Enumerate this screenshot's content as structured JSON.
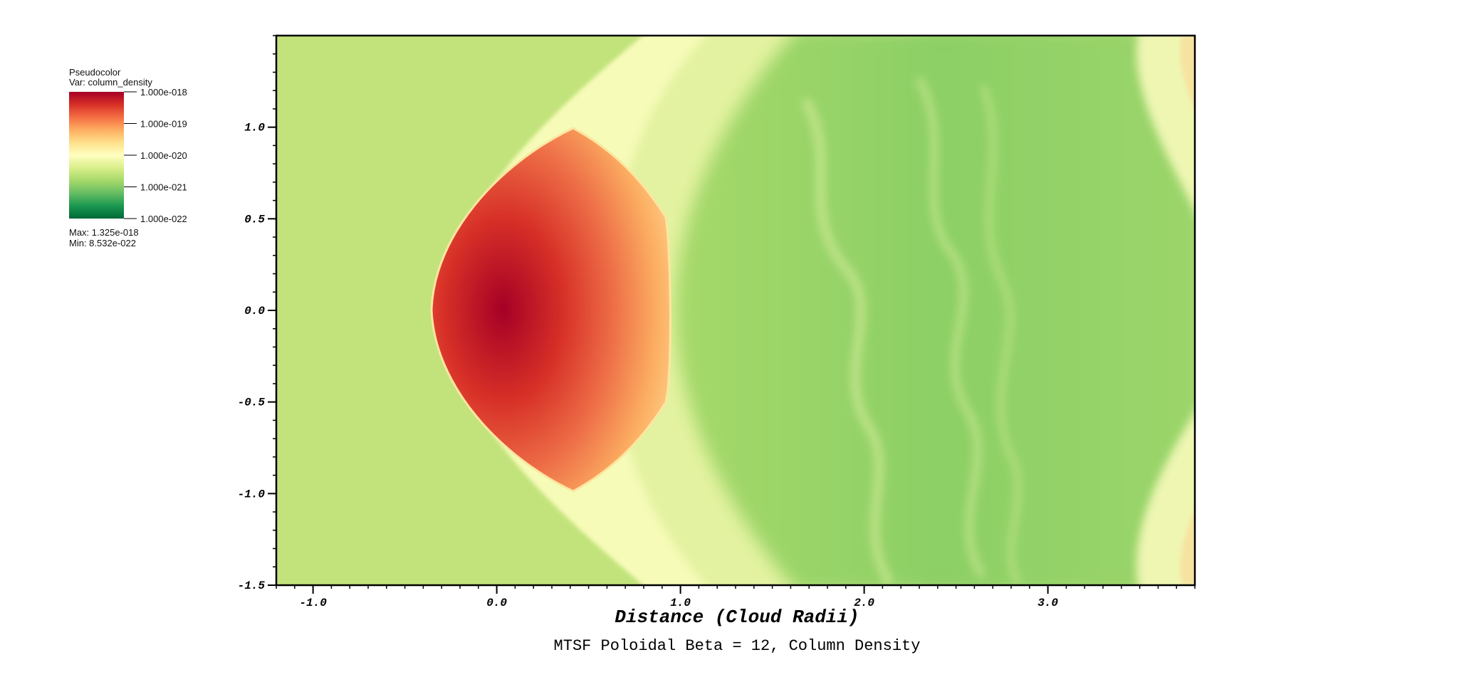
{
  "legend": {
    "plot_type": "Pseudocolor",
    "var_label": "Var: column_density",
    "ticks": [
      "1.000e-018",
      "1.000e-019",
      "1.000e-020",
      "1.000e-021",
      "1.000e-022"
    ],
    "max_label": "Max:  1.325e-018",
    "min_label": "Min:  8.532e-022",
    "colors": [
      "#a50026",
      "#d73027",
      "#f46d43",
      "#fdae61",
      "#fee08b",
      "#ffffbf",
      "#d9ef8b",
      "#a6d96a",
      "#66bd63",
      "#1a9850",
      "#006837"
    ]
  },
  "chart_data": {
    "type": "heatmap",
    "title": "MTSF Poloidal Beta = 12, Column Density",
    "xlabel": "Distance (Cloud Radii)",
    "ylabel": "",
    "xlim": [
      -1.2,
      3.8
    ],
    "ylim": [
      -1.5,
      1.5
    ],
    "x_ticks": [
      -1.0,
      0.0,
      1.0,
      2.0,
      3.0
    ],
    "x_tick_labels": [
      "-1.0",
      "0.0",
      "1.0",
      "2.0",
      "3.0"
    ],
    "y_ticks": [
      1.0,
      0.5,
      0.0,
      -0.5,
      -1.0,
      -1.5
    ],
    "y_tick_labels": [
      "1.0",
      "0.5",
      "0.0",
      "-0.5",
      "-1.0",
      "-1.5"
    ],
    "colorbar": {
      "scale": "log",
      "range": [
        1e-22,
        1e-18
      ],
      "data_max": 1.325e-18,
      "data_min": 8.532e-22
    }
  }
}
